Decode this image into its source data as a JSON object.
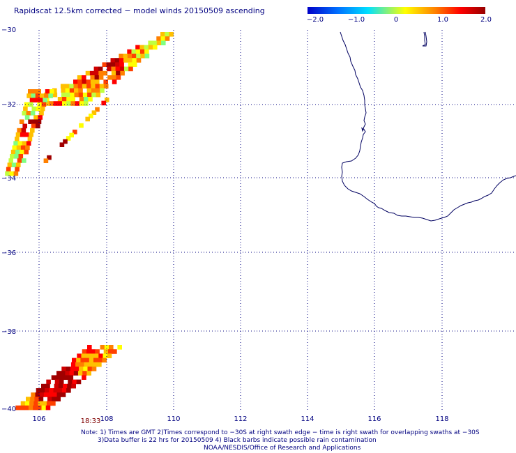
{
  "title": "Rapidscat 12.5km corrected − model winds 20150509 ascending",
  "colorbar": {
    "ticks": [
      "−2.0",
      "−1.0",
      "0",
      "1.0",
      "2.0"
    ],
    "min": -2.0,
    "max": 2.0,
    "colors": [
      "#0000c8",
      "#0070ff",
      "#00e0ff",
      "#ffff00",
      "#ff8000",
      "#ff0000",
      "#960000"
    ]
  },
  "latitude_labels": [
    "−30",
    "−32",
    "−34",
    "−36",
    "−38",
    "−40"
  ],
  "longitude_labels": [
    "106",
    "108",
    "110",
    "112",
    "114",
    "116",
    "118"
  ],
  "swath_time": "18:33",
  "notes": [
    "Note: 1) Times are GMT 2)Times correspond to −30S at right swath edge − time is right swath for overlapping swaths at −30S",
    "3)Data buffer is 22 hrs for 20150509 4) Black barbs indicate possible rain contamination",
    "NOAA/NESDIS/Office of Research and Applications"
  ],
  "colors": {
    "text": "#000080",
    "coast": "#000060",
    "grid": "#000080",
    "time_label": "#800000"
  }
}
